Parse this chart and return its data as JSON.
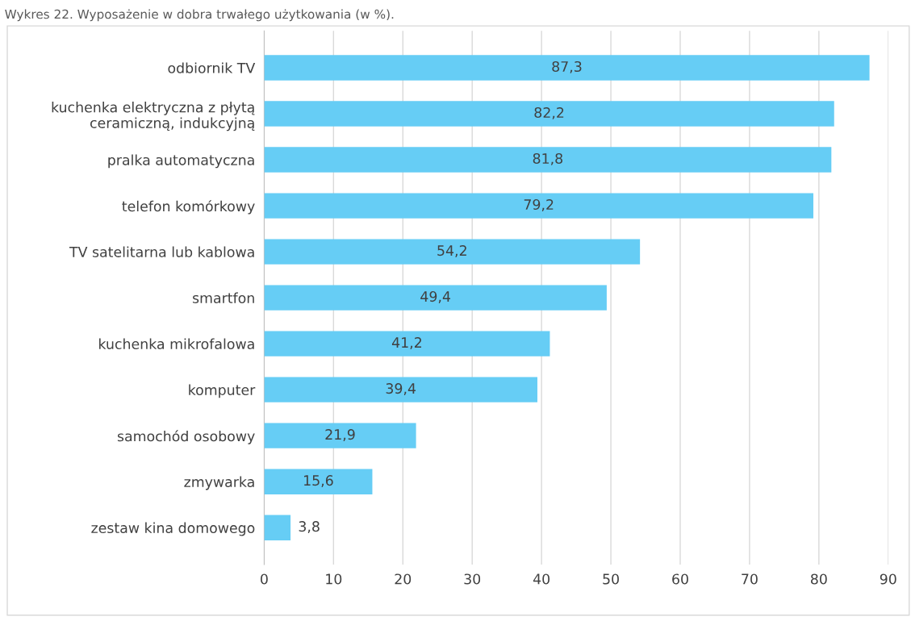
{
  "chart_data": {
    "type": "bar",
    "orientation": "horizontal",
    "title": "Wykres 22. Wyposażenie w dobra trwałego użytkowania (w %).",
    "categories": [
      "odbiornik TV",
      "kuchenka elektryczna z płytą\nceramiczną, indukcyjną",
      "pralka automatyczna",
      "telefon komórkowy",
      "TV satelitarna lub kablowa",
      "smartfon",
      "kuchenka mikrofalowa",
      "komputer",
      "samochód osobowy",
      "zmywarka",
      "zestaw kina domowego"
    ],
    "values": [
      87.3,
      82.2,
      81.8,
      79.2,
      54.2,
      49.4,
      41.2,
      39.4,
      21.9,
      15.6,
      3.8
    ],
    "value_labels": [
      "87,3",
      "82,2",
      "81,8",
      "79,2",
      "54,2",
      "49,4",
      "41,2",
      "39,4",
      "21,9",
      "15,6",
      "3,8"
    ],
    "color": "#66cdf5",
    "xlim": [
      0,
      90
    ],
    "xticks": [
      0,
      10,
      20,
      30,
      40,
      50,
      60,
      70,
      80,
      90
    ],
    "grid": "x"
  }
}
